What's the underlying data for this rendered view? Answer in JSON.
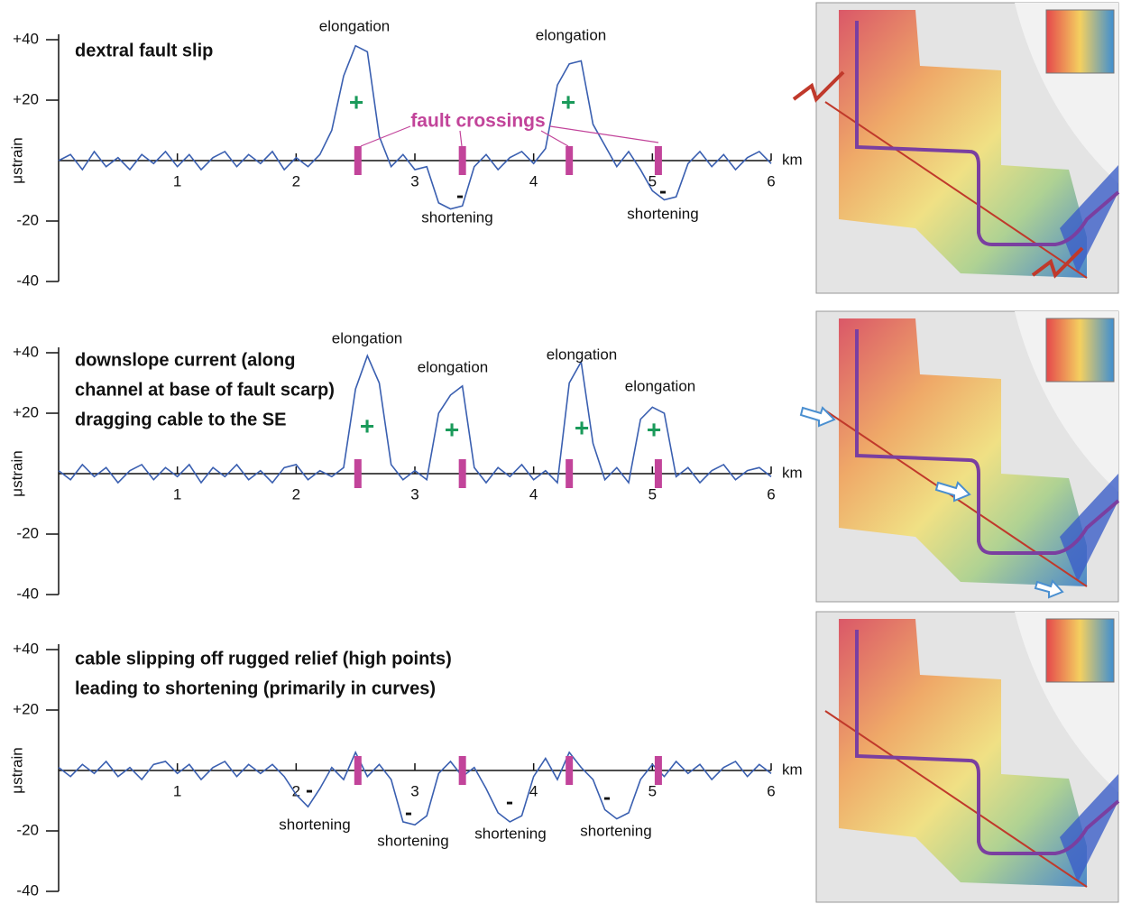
{
  "chart_data": [
    {
      "type": "line",
      "title": [
        "dextral fault slip"
      ],
      "y_label": "μstrain",
      "x_unit": "km",
      "xlim": [
        0,
        6
      ],
      "ylim": [
        -40,
        40
      ],
      "xticks": [
        1,
        2,
        3,
        4,
        5,
        6
      ],
      "yticks": [
        {
          "value": 40,
          "label": "+40"
        },
        {
          "value": 20,
          "label": "+20"
        },
        {
          "value": -20,
          "label": "-20"
        },
        {
          "value": -40,
          "label": "-40"
        }
      ],
      "fault_crossings": [
        2.52,
        3.4,
        4.3,
        5.05
      ],
      "fault_color": "#c2449a",
      "x": [
        0,
        0.1,
        0.2,
        0.3,
        0.4,
        0.5,
        0.6,
        0.7,
        0.8,
        0.9,
        1,
        1.1,
        1.2,
        1.3,
        1.4,
        1.5,
        1.6,
        1.7,
        1.8,
        1.9,
        2,
        2.1,
        2.2,
        2.3,
        2.4,
        2.5,
        2.6,
        2.7,
        2.8,
        2.9,
        3,
        3.1,
        3.2,
        3.3,
        3.4,
        3.5,
        3.6,
        3.7,
        3.8,
        3.9,
        4,
        4.1,
        4.2,
        4.3,
        4.4,
        4.5,
        4.6,
        4.7,
        4.8,
        4.9,
        5,
        5.1,
        5.2,
        5.3,
        5.4,
        5.5,
        5.6,
        5.7,
        5.8,
        5.9,
        6
      ],
      "series": [
        {
          "color": "#3a5fb0",
          "values": [
            0,
            2,
            -3,
            3,
            -2,
            1,
            -3,
            2,
            -1,
            3,
            -2,
            2,
            -3,
            1,
            3,
            -2,
            2,
            -1,
            3,
            -3,
            1,
            -2,
            2,
            10,
            28,
            38,
            36,
            8,
            -2,
            2,
            -3,
            -2,
            -14,
            -16,
            -15,
            -2,
            2,
            -3,
            1,
            3,
            -1,
            4,
            25,
            32,
            33,
            12,
            5,
            -2,
            3,
            -3,
            -10,
            -13,
            -12,
            -1,
            3,
            -2,
            2,
            -3,
            1,
            3,
            -1
          ]
        }
      ],
      "annotations": [
        "elongation",
        "elongation",
        "shortening",
        "shortening",
        "fault crossings",
        "+",
        "+",
        "-",
        "-"
      ]
    },
    {
      "type": "line",
      "title": [
        "downslope current (along",
        "channel at base of fault scarp)",
        "dragging cable to the SE"
      ],
      "y_label": "μstrain",
      "x_unit": "km",
      "xlim": [
        0,
        6
      ],
      "ylim": [
        -40,
        40
      ],
      "xticks": [
        1,
        2,
        3,
        4,
        5,
        6
      ],
      "yticks": [
        {
          "value": 40,
          "label": "+40"
        },
        {
          "value": 20,
          "label": "+20"
        },
        {
          "value": -20,
          "label": "-20"
        },
        {
          "value": -40,
          "label": "-40"
        }
      ],
      "fault_crossings": [
        2.52,
        3.4,
        4.3,
        5.05
      ],
      "fault_color": "#c2449a",
      "x": [
        0,
        0.1,
        0.2,
        0.3,
        0.4,
        0.5,
        0.6,
        0.7,
        0.8,
        0.9,
        1,
        1.1,
        1.2,
        1.3,
        1.4,
        1.5,
        1.6,
        1.7,
        1.8,
        1.9,
        2,
        2.1,
        2.2,
        2.3,
        2.4,
        2.5,
        2.6,
        2.7,
        2.8,
        2.9,
        3,
        3.1,
        3.2,
        3.3,
        3.4,
        3.5,
        3.6,
        3.7,
        3.8,
        3.9,
        4,
        4.1,
        4.2,
        4.3,
        4.4,
        4.5,
        4.6,
        4.7,
        4.8,
        4.9,
        5,
        5.1,
        5.2,
        5.3,
        5.4,
        5.5,
        5.6,
        5.7,
        5.8,
        5.9,
        6
      ],
      "series": [
        {
          "color": "#3a5fb0",
          "values": [
            1,
            -2,
            3,
            -1,
            2,
            -3,
            1,
            3,
            -2,
            2,
            -1,
            3,
            -3,
            2,
            -1,
            3,
            -2,
            1,
            -3,
            2,
            3,
            -2,
            1,
            -1,
            2,
            28,
            39,
            30,
            3,
            -2,
            1,
            -2,
            20,
            26,
            29,
            2,
            -3,
            2,
            -1,
            3,
            -2,
            1,
            -3,
            30,
            37,
            10,
            -2,
            2,
            -3,
            18,
            22,
            20,
            -1,
            2,
            -3,
            1,
            3,
            -2,
            1,
            2,
            -1
          ]
        }
      ],
      "annotations": [
        "elongation",
        "elongation",
        "elongation",
        "elongation",
        "+",
        "+",
        "+",
        "+"
      ]
    },
    {
      "type": "line",
      "title": [
        "cable slipping off rugged relief (high points)",
        "leading to shortening (primarily in curves)"
      ],
      "y_label": "μstrain",
      "x_unit": "km",
      "xlim": [
        0,
        6
      ],
      "ylim": [
        -40,
        40
      ],
      "xticks": [
        1,
        2,
        3,
        4,
        5,
        6
      ],
      "yticks": [
        {
          "value": 40,
          "label": "+40"
        },
        {
          "value": 20,
          "label": "+20"
        },
        {
          "value": -20,
          "label": "-20"
        },
        {
          "value": -40,
          "label": "-40"
        }
      ],
      "fault_crossings": [
        2.52,
        3.4,
        4.3,
        5.05
      ],
      "fault_color": "#c2449a",
      "x": [
        0,
        0.1,
        0.2,
        0.3,
        0.4,
        0.5,
        0.6,
        0.7,
        0.8,
        0.9,
        1,
        1.1,
        1.2,
        1.3,
        1.4,
        1.5,
        1.6,
        1.7,
        1.8,
        1.9,
        2,
        2.1,
        2.2,
        2.3,
        2.4,
        2.5,
        2.6,
        2.7,
        2.8,
        2.9,
        3,
        3.1,
        3.2,
        3.3,
        3.4,
        3.5,
        3.6,
        3.7,
        3.8,
        3.9,
        4,
        4.1,
        4.2,
        4.3,
        4.4,
        4.5,
        4.6,
        4.7,
        4.8,
        4.9,
        5,
        5.1,
        5.2,
        5.3,
        5.4,
        5.5,
        5.6,
        5.7,
        5.8,
        5.9,
        6
      ],
      "series": [
        {
          "color": "#3a5fb0",
          "values": [
            1,
            -2,
            2,
            -1,
            3,
            -2,
            1,
            -3,
            2,
            3,
            -1,
            2,
            -3,
            1,
            3,
            -2,
            2,
            -1,
            2,
            -2,
            -8,
            -12,
            -6,
            1,
            -3,
            6,
            -2,
            2,
            -3,
            -17,
            -18,
            -15,
            -1,
            3,
            -2,
            1,
            -6,
            -14,
            -17,
            -15,
            -2,
            4,
            -3,
            6,
            1,
            -3,
            -13,
            -16,
            -14,
            -3,
            2,
            -2,
            3,
            -1,
            2,
            -3,
            1,
            3,
            -2,
            2,
            -1
          ]
        }
      ],
      "annotations": [
        "shortening",
        "shortening",
        "shortening",
        "shortening",
        "-",
        "-",
        "-",
        "-"
      ]
    }
  ]
}
